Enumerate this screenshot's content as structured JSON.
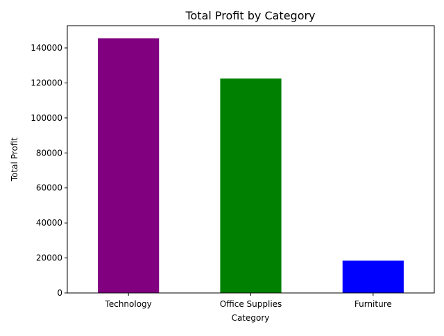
{
  "chart_data": {
    "type": "bar",
    "title": "Total Profit by Category",
    "xlabel": "Category",
    "ylabel": "Total Profit",
    "categories": [
      "Technology",
      "Office Supplies",
      "Furniture"
    ],
    "values": [
      145455,
      122491,
      18451
    ],
    "colors": [
      "#800080",
      "#008000",
      "#0000ff"
    ],
    "ylim": [
      0,
      152700
    ],
    "yticks": [
      0,
      20000,
      40000,
      60000,
      80000,
      100000,
      120000,
      140000
    ],
    "ytick_labels": [
      "0",
      "20000",
      "40000",
      "60000",
      "80000",
      "100000",
      "120000",
      "140000"
    ],
    "grid": false,
    "legend": "none"
  }
}
